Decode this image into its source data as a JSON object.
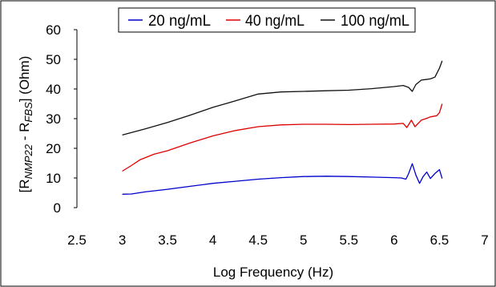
{
  "chart_data": {
    "type": "line",
    "xlabel": "Log Frequency (Hz)",
    "ylabel": {
      "prefix": "[R",
      "sub1": "NMP22",
      "middle": " - R",
      "sub2": "FBS",
      "suffix": "] (Ohm)"
    },
    "xlim": [
      2.5,
      7
    ],
    "ylim": [
      0,
      60
    ],
    "xticks": [
      2.5,
      3,
      3.5,
      4,
      4.5,
      5,
      5.5,
      6,
      6.5,
      7
    ],
    "yticks": [
      0,
      10,
      20,
      30,
      40,
      50,
      60
    ],
    "x_tick_labels": [
      "2.5",
      "3",
      "3.5",
      "4",
      "4.5",
      "5",
      "5.5",
      "6",
      "6.5",
      "7"
    ],
    "y_tick_labels": [
      "0",
      "10",
      "20",
      "30",
      "40",
      "50",
      "60"
    ],
    "grid": false,
    "legend_position": "top",
    "series": [
      {
        "name": "20 ng/mL",
        "color": "#0000cc",
        "points": [
          [
            3.0,
            4.5
          ],
          [
            3.1,
            4.6
          ],
          [
            3.25,
            5.3
          ],
          [
            3.5,
            6.2
          ],
          [
            3.75,
            7.2
          ],
          [
            4.0,
            8.2
          ],
          [
            4.25,
            8.9
          ],
          [
            4.5,
            9.6
          ],
          [
            4.75,
            10.1
          ],
          [
            5.0,
            10.5
          ],
          [
            5.25,
            10.6
          ],
          [
            5.5,
            10.5
          ],
          [
            5.75,
            10.3
          ],
          [
            6.0,
            10.1
          ],
          [
            6.08,
            10.0
          ],
          [
            6.13,
            9.6
          ],
          [
            6.16,
            11.5
          ],
          [
            6.2,
            14.8
          ],
          [
            6.24,
            11.0
          ],
          [
            6.28,
            8.2
          ],
          [
            6.32,
            10.5
          ],
          [
            6.36,
            12.0
          ],
          [
            6.4,
            9.8
          ],
          [
            6.45,
            11.5
          ],
          [
            6.5,
            12.8
          ],
          [
            6.53,
            9.8
          ]
        ]
      },
      {
        "name": "40 ng/mL",
        "color": "#dd0000",
        "points": [
          [
            3.0,
            12.3
          ],
          [
            3.1,
            14.2
          ],
          [
            3.2,
            16.2
          ],
          [
            3.35,
            18.0
          ],
          [
            3.5,
            19.2
          ],
          [
            3.75,
            21.8
          ],
          [
            4.0,
            24.2
          ],
          [
            4.25,
            26.0
          ],
          [
            4.5,
            27.3
          ],
          [
            4.75,
            27.9
          ],
          [
            5.0,
            28.1
          ],
          [
            5.25,
            28.1
          ],
          [
            5.5,
            28.0
          ],
          [
            5.75,
            28.1
          ],
          [
            6.0,
            28.2
          ],
          [
            6.1,
            28.4
          ],
          [
            6.14,
            27.0
          ],
          [
            6.19,
            29.5
          ],
          [
            6.23,
            27.3
          ],
          [
            6.3,
            29.5
          ],
          [
            6.35,
            30.0
          ],
          [
            6.4,
            30.6
          ],
          [
            6.47,
            31.0
          ],
          [
            6.5,
            32.0
          ],
          [
            6.53,
            35.0
          ]
        ]
      },
      {
        "name": "100 ng/mL",
        "color": "#111111",
        "points": [
          [
            3.0,
            24.5
          ],
          [
            3.25,
            26.5
          ],
          [
            3.5,
            28.7
          ],
          [
            3.75,
            31.2
          ],
          [
            4.0,
            33.8
          ],
          [
            4.25,
            36.0
          ],
          [
            4.5,
            38.3
          ],
          [
            4.75,
            39.0
          ],
          [
            5.0,
            39.2
          ],
          [
            5.25,
            39.4
          ],
          [
            5.5,
            39.6
          ],
          [
            5.75,
            40.1
          ],
          [
            6.0,
            40.8
          ],
          [
            6.1,
            41.2
          ],
          [
            6.16,
            40.5
          ],
          [
            6.2,
            39.2
          ],
          [
            6.24,
            41.5
          ],
          [
            6.3,
            43.0
          ],
          [
            6.35,
            43.2
          ],
          [
            6.4,
            43.4
          ],
          [
            6.45,
            44.0
          ],
          [
            6.5,
            47.0
          ],
          [
            6.53,
            49.5
          ]
        ]
      }
    ]
  }
}
